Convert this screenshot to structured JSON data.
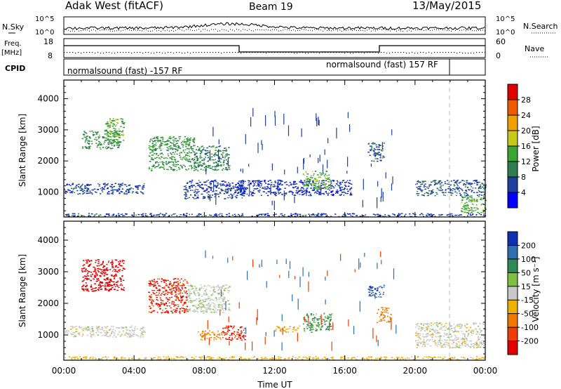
{
  "header": {
    "radar": "Adak West (fitACF)",
    "beam": "Beam 19",
    "date": "13/May/2015"
  },
  "top_panels": {
    "nsky_label": "N.Sky",
    "nsearch_label": "N.Search",
    "nsky_ticks": [
      "10^5",
      "10^0"
    ],
    "nsearch_ticks": [
      "10^5",
      "10^0"
    ],
    "freq_label": "Freq.",
    "freq_unit": "[MHz]",
    "freq_ticks": [
      "18",
      "8"
    ],
    "nave_label": "Nave",
    "nave_ticks": [
      "60",
      "0"
    ],
    "cpid_label": "CPID",
    "cpid_segments": [
      "normalsound (fast) -157 RF",
      "normalsound (fast) 157 RF"
    ]
  },
  "colorbars": {
    "power": {
      "label": "Power [dB]",
      "ticks": [
        "28",
        "24",
        "20",
        "16",
        "12",
        "8",
        "4"
      ],
      "colors": [
        "#0000ff",
        "#1e3fa0",
        "#2e7d4f",
        "#3aa632",
        "#c8c818",
        "#f0a000",
        "#f05a00",
        "#e00000"
      ]
    },
    "velocity": {
      "label": "Velocity [m s⁻¹]",
      "ticks": [
        "200",
        "100",
        "50",
        "15",
        "-15",
        "-50",
        "-100",
        "-200"
      ],
      "colors": [
        "#1030b0",
        "#2f6fb0",
        "#2f8a55",
        "#7fc040",
        "#c8c8c8",
        "#f0b000",
        "#f07800",
        "#f03c00",
        "#e00000"
      ]
    }
  },
  "chart_data": [
    {
      "type": "heatmap",
      "name": "power",
      "ylabel": "Slant Range [km]",
      "yticks": [
        1000,
        2000,
        3000,
        4000
      ],
      "ylim": [
        200,
        4600
      ],
      "xlim": [
        0,
        24
      ],
      "xticks": [
        "00:00",
        "04:00",
        "08:00",
        "12:00",
        "16:00",
        "20:00",
        "00:00"
      ],
      "clim": [
        0,
        30
      ],
      "regions": [
        {
          "t0": 0.0,
          "t1": 4.6,
          "r0": 950,
          "r1": 1300,
          "value": 6
        },
        {
          "t0": 1.0,
          "t1": 3.2,
          "r0": 2400,
          "r1": 3000,
          "value": 11
        },
        {
          "t0": 2.3,
          "t1": 3.4,
          "r0": 2600,
          "r1": 3400,
          "value": 14
        },
        {
          "t0": 4.8,
          "t1": 7.5,
          "r0": 1700,
          "r1": 2800,
          "value": 12
        },
        {
          "t0": 7.4,
          "t1": 9.4,
          "r0": 1700,
          "r1": 2500,
          "value": 10
        },
        {
          "t0": 6.8,
          "t1": 10.3,
          "r0": 800,
          "r1": 1400,
          "value": 6
        },
        {
          "t0": 10.0,
          "t1": 16.4,
          "r0": 900,
          "r1": 1400,
          "value": 5
        },
        {
          "t0": 13.6,
          "t1": 15.2,
          "r0": 1100,
          "r1": 1700,
          "value": 14
        },
        {
          "t0": 17.3,
          "t1": 18.2,
          "r0": 2000,
          "r1": 2600,
          "value": 7
        },
        {
          "t0": 20.0,
          "t1": 24.0,
          "r0": 900,
          "r1": 1400,
          "value": 7
        },
        {
          "t0": 22.6,
          "t1": 24.0,
          "r0": 350,
          "r1": 900,
          "value": 14
        },
        {
          "t0": 0.0,
          "t1": 24.0,
          "r0": 220,
          "r1": 330,
          "value": 6
        }
      ]
    },
    {
      "type": "heatmap",
      "name": "velocity",
      "ylabel": "Slant Range [km]",
      "yticks": [
        1000,
        2000,
        3000,
        4000
      ],
      "ylim": [
        200,
        4600
      ],
      "xlim": [
        0,
        24
      ],
      "xticks": [
        "00:00",
        "04:00",
        "08:00",
        "12:00",
        "16:00",
        "20:00",
        "00:00"
      ],
      "xlabel": "Time UT",
      "clim": [
        -250,
        250
      ],
      "regions": [
        {
          "t0": 0.0,
          "t1": 4.6,
          "r0": 950,
          "r1": 1300,
          "value": 0
        },
        {
          "t0": 1.0,
          "t1": 3.4,
          "r0": 2400,
          "r1": 3400,
          "value": -220
        },
        {
          "t0": 4.8,
          "t1": 7.0,
          "r0": 1700,
          "r1": 2800,
          "value": -200
        },
        {
          "t0": 7.0,
          "t1": 9.4,
          "r0": 1700,
          "r1": 2600,
          "value": 5
        },
        {
          "t0": 7.6,
          "t1": 9.0,
          "r0": 850,
          "r1": 1150,
          "value": -60
        },
        {
          "t0": 9.0,
          "t1": 10.3,
          "r0": 850,
          "r1": 1300,
          "value": -200
        },
        {
          "t0": 12.0,
          "t1": 13.4,
          "r0": 1100,
          "r1": 1300,
          "value": -40
        },
        {
          "t0": 13.6,
          "t1": 15.2,
          "r0": 1100,
          "r1": 1700,
          "value": 60
        },
        {
          "t0": 17.3,
          "t1": 18.2,
          "r0": 2200,
          "r1": 2600,
          "value": 200
        },
        {
          "t0": 17.8,
          "t1": 18.6,
          "r0": 1400,
          "r1": 1900,
          "value": -80
        },
        {
          "t0": 20.0,
          "t1": 24.0,
          "r0": 600,
          "r1": 1400,
          "value": 0
        },
        {
          "t0": 0.0,
          "t1": 24.0,
          "r0": 220,
          "r1": 330,
          "value": -30
        }
      ]
    }
  ]
}
